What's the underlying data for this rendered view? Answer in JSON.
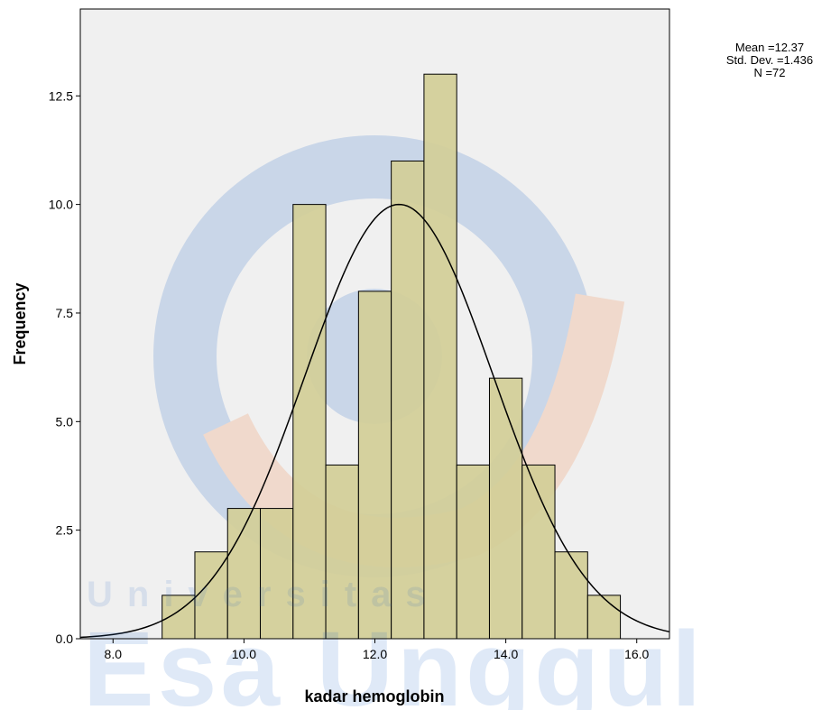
{
  "chart_data": {
    "type": "bar",
    "title": "",
    "xlabel": "kadar hemoglobin",
    "ylabel": "Frequency",
    "xlim": [
      7.5,
      16.5
    ],
    "ylim": [
      0,
      14.5
    ],
    "bin_width": 0.5,
    "x_ticks": [
      8.0,
      10.0,
      12.0,
      14.0,
      16.0
    ],
    "x_tick_labels": [
      "8.0",
      "10.0",
      "12.0",
      "14.0",
      "16.0"
    ],
    "y_ticks": [
      0,
      2.5,
      5,
      7.5,
      10,
      12.5
    ],
    "y_tick_labels": [
      "0.0",
      "2.5",
      "5.0",
      "7.5",
      "10.0",
      "12.5"
    ],
    "bins": [
      {
        "start": 8.75,
        "end": 9.25,
        "count": 1
      },
      {
        "start": 9.25,
        "end": 9.75,
        "count": 2
      },
      {
        "start": 9.75,
        "end": 10.25,
        "count": 3
      },
      {
        "start": 10.25,
        "end": 10.75,
        "count": 3
      },
      {
        "start": 10.75,
        "end": 11.25,
        "count": 10
      },
      {
        "start": 11.25,
        "end": 11.75,
        "count": 4
      },
      {
        "start": 11.75,
        "end": 12.25,
        "count": 8
      },
      {
        "start": 12.25,
        "end": 12.75,
        "count": 11
      },
      {
        "start": 12.75,
        "end": 13.25,
        "count": 13
      },
      {
        "start": 13.25,
        "end": 13.75,
        "count": 4
      },
      {
        "start": 13.75,
        "end": 14.25,
        "count": 6
      },
      {
        "start": 14.25,
        "end": 14.75,
        "count": 4
      },
      {
        "start": 14.75,
        "end": 15.25,
        "count": 2
      },
      {
        "start": 15.25,
        "end": 15.75,
        "count": 1
      }
    ],
    "normal_curve": {
      "mean": 12.37,
      "std": 1.436,
      "n": 72
    },
    "grid": false,
    "legend": "none"
  },
  "stats": {
    "mean_text": "Mean =12.37",
    "std_text": "Std. Dev. =1.436",
    "n_text": "N =72"
  },
  "watermark": {
    "line1": "Universitas",
    "line2": "Esa Unggul"
  },
  "colors": {
    "plot_bg": "#f0f0f0",
    "bar_fill": "#d3ce97",
    "bar_stroke": "#000000",
    "curve": "#000000",
    "watermark_blue": "#1e64c8",
    "watermark_orange": "#f07830"
  }
}
